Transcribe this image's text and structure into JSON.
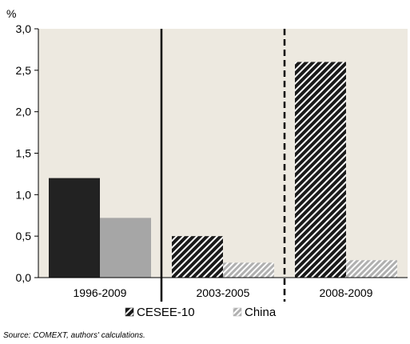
{
  "chart_data": {
    "type": "bar",
    "unit_label": "%",
    "categories": [
      "1996-2009",
      "2003-2005",
      "2008-2009"
    ],
    "series": [
      {
        "name": "CESEE-10",
        "values": [
          1.2,
          0.5,
          2.6
        ],
        "colors": [
          "#222222",
          "#222222",
          "#222222"
        ],
        "patterns": [
          "solid",
          "hatch-dark",
          "hatch-dark"
        ]
      },
      {
        "name": "China",
        "values": [
          0.72,
          0.18,
          0.21
        ],
        "colors": [
          "#a6a6a6",
          "#a6a6a6",
          "#a6a6a6"
        ],
        "patterns": [
          "solid",
          "hatch-light",
          "hatch-light"
        ]
      }
    ],
    "ylim": [
      0,
      3.0
    ],
    "yticks": [
      "0,0",
      "0,5",
      "1,0",
      "1,5",
      "2,0",
      "2,5",
      "3,0"
    ],
    "ytick_values": [
      0,
      0.5,
      1.0,
      1.5,
      2.0,
      2.5,
      3.0
    ],
    "separators": [
      {
        "after_category": 0,
        "style": "solid"
      },
      {
        "after_category": 1,
        "style": "dashed"
      }
    ],
    "plot_background": "#ede9e0",
    "grid": false,
    "legend_position": "bottom"
  },
  "source_note": "Source: COMEXT, authors' calculations."
}
